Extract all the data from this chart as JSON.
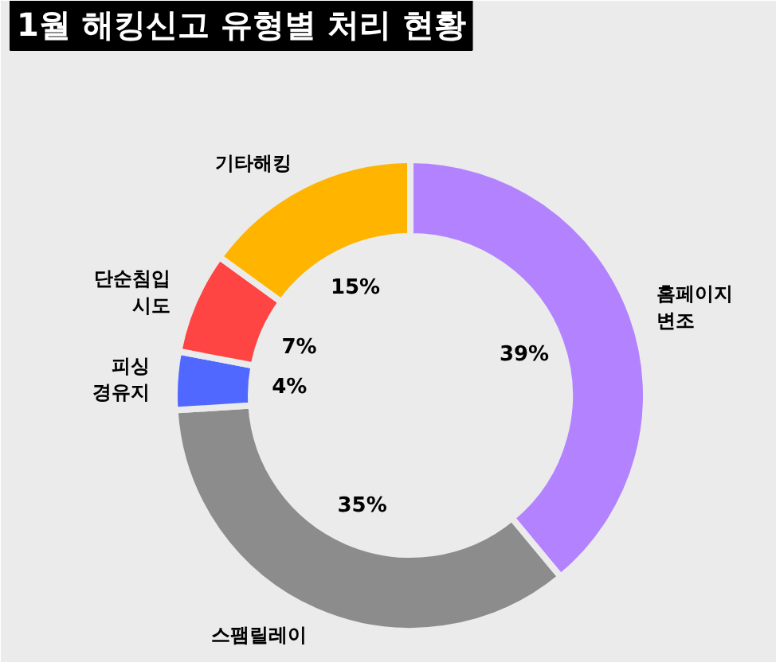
{
  "chart_data": {
    "type": "donut",
    "title": "1월 해킹신고 유형별 처리 현황",
    "categories": [
      "홈페이지\n변조",
      "스팸릴레이",
      "피싱\n경유지",
      "단순침입\n시도",
      "기타해킹"
    ],
    "values": [
      39,
      35,
      4,
      7,
      15
    ],
    "colors": [
      "#b383ff",
      "#8c8c8c",
      "#5068ff",
      "#ff4444",
      "#ffb400"
    ],
    "value_labels": [
      "39%",
      "35%",
      "4%",
      "7%",
      "15%"
    ]
  }
}
